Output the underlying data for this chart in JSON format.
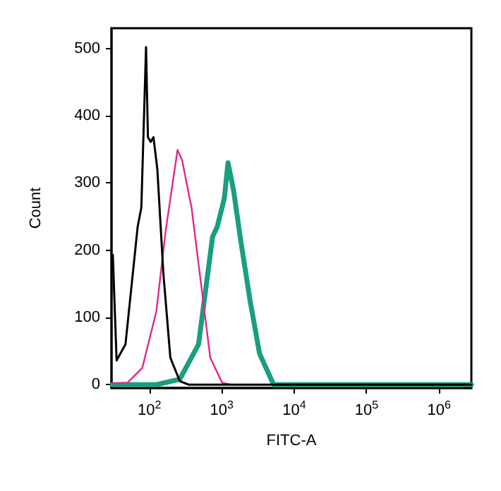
{
  "chart_data": {
    "type": "line",
    "xlabel": "FITC-A",
    "ylabel": "Count",
    "log": "x",
    "xlim": [
      30,
      2800000
    ],
    "xticks": [
      {
        "value": 100,
        "label": "10$^{2}$"
      },
      {
        "value": 1000,
        "label": "10$^{3}$"
      },
      {
        "value": 10000,
        "label": "10$^{4}$"
      },
      {
        "value": 100000,
        "label": "10$^{5}$"
      },
      {
        "value": 1000000,
        "label": "10$^{6}$"
      }
    ],
    "ylim": [
      -5,
      530
    ],
    "yticks": [
      0,
      100,
      200,
      300,
      400,
      500
    ],
    "grid": false,
    "marker": "none",
    "line_style": "solid",
    "series": [
      {
        "color": "#000000",
        "x": [
          31.3,
          35.3,
          46.8,
          69,
          77.5,
          90,
          95.6,
          104.6,
          114,
          129,
          156,
          195,
          264,
          350,
          2800000
        ],
        "values": [
          193,
          36,
          60,
          235,
          263,
          502,
          368,
          361,
          368,
          320,
          166,
          40,
          5,
          0,
          0
        ]
      },
      {
        "color": "#e0288c",
        "x": [
          31,
          50,
          80,
          125,
          168,
          245,
          283,
          383,
          516,
          694,
          1010,
          1330,
          2800000
        ],
        "values": [
          2,
          3,
          25,
          109,
          229,
          349,
          334,
          263,
          151,
          40,
          3,
          0,
          0
        ]
      },
      {
        "color": "#1a9e80",
        "x": [
          31,
          125,
          263,
          478,
          747,
          868,
          1085,
          1220,
          1460,
          1830,
          2470,
          3330,
          5200,
          2800000
        ],
        "values": [
          0,
          0,
          8,
          60,
          220,
          235,
          277,
          330,
          288,
          214,
          124,
          46,
          0,
          0
        ]
      }
    ]
  }
}
